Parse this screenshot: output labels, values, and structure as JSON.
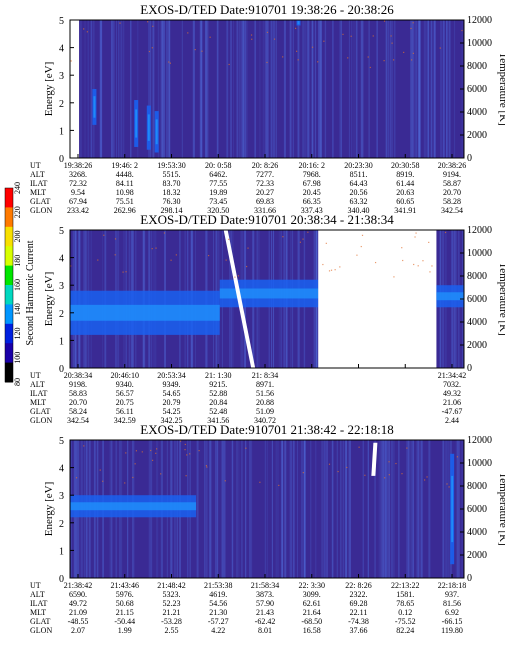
{
  "colors": {
    "background": "#3a2a94",
    "vertical_lines": "#4f6ad8",
    "stripe": "#1a60f0",
    "stripe_core": "#1f8af8",
    "white": "#ffffff",
    "noise_dot": "#e07030"
  },
  "colorbar": {
    "label": "Second Harmonic Current",
    "ticks": [
      "240",
      "220",
      "200",
      "180",
      "160",
      "140",
      "120",
      "100",
      "80"
    ],
    "stops": [
      "#ff0000",
      "#ff7a00",
      "#f8e000",
      "#d8ff00",
      "#00e600",
      "#00d8c0",
      "#0096ff",
      "#0020e0",
      "#1a00a8",
      "#000000"
    ]
  },
  "chart_data": [
    {
      "type": "heatmap",
      "title": "EXOS-D/TED   Date:910701   19:38:26 - 20:38:26",
      "ylabel": "Energy [eV]",
      "y2label": "Temperature [K]",
      "ylim": [
        0,
        5
      ],
      "yticks": [
        "0",
        "1",
        "2",
        "3",
        "4",
        "5"
      ],
      "y2lim": [
        0,
        12000
      ],
      "y2ticks": [
        "0",
        "2000",
        "4000",
        "6000",
        "8000",
        "10000",
        "12000"
      ],
      "xtick_labels": [
        "19:38:26",
        "19:46: 2",
        "19:53:30",
        "20: 0:58",
        "20: 8:26",
        "20:16: 2",
        "20:23:30",
        "20:30:58",
        "20:38:26"
      ],
      "ephemeris": [
        {
          "label": "UT",
          "values": [
            "19:38:26",
            "19:46: 2",
            "19:53:30",
            "20: 0:58",
            "20: 8:26",
            "20:16: 2",
            "20:23:30",
            "20:30:58",
            "20:38:26"
          ]
        },
        {
          "label": "ALT",
          "values": [
            "3268.",
            "4448.",
            "5515.",
            "6462.",
            "7277.",
            "7968.",
            "8511.",
            "8919.",
            "9194."
          ]
        },
        {
          "label": "ILAT",
          "values": [
            "72.32",
            "84.11",
            "83.70",
            "77.55",
            "72.33",
            "67.98",
            "64.43",
            "61.44",
            "58.87"
          ]
        },
        {
          "label": "MLT",
          "values": [
            "9.54",
            "10.98",
            "18.32",
            "19.89",
            "20.27",
            "20.45",
            "20.56",
            "20.63",
            "20.70"
          ]
        },
        {
          "label": "GLAT",
          "values": [
            "67.94",
            "75.51",
            "76.30",
            "73.45",
            "69.83",
            "66.35",
            "63.32",
            "60.65",
            "58.28"
          ]
        },
        {
          "label": "GLON",
          "values": [
            "233.42",
            "262.96",
            "298.14",
            "320.50",
            "331.66",
            "337.43",
            "340.40",
            "341.91",
            "342.54"
          ]
        }
      ],
      "features": [
        {
          "kind": "white_strip",
          "x_frac": [
            0.0,
            0.023
          ]
        },
        {
          "kind": "blue_column",
          "x_frac": 0.062,
          "energy": [
            1.2,
            2.5
          ]
        },
        {
          "kind": "blue_column",
          "x_frac": 0.168,
          "energy": [
            0.4,
            2.1
          ]
        },
        {
          "kind": "blue_column",
          "x_frac": 0.2,
          "energy": [
            0.3,
            1.9
          ]
        },
        {
          "kind": "blue_column",
          "x_frac": 0.22,
          "energy": [
            0.2,
            1.7
          ]
        },
        {
          "kind": "blue_column",
          "x_frac": 0.58,
          "energy": [
            4.8,
            5.0
          ]
        }
      ]
    },
    {
      "type": "heatmap",
      "title": "EXOS-D/TED   Date:910701   20:38:34 - 21:38:34",
      "ylabel": "Energy [eV]",
      "y2label": "Temperature [K]",
      "ylim": [
        0,
        5
      ],
      "yticks": [
        "0",
        "1",
        "2",
        "3",
        "4",
        "5"
      ],
      "y2lim": [
        0,
        12000
      ],
      "y2ticks": [
        "0",
        "2000",
        "4000",
        "6000",
        "8000",
        "10000",
        "12000"
      ],
      "xtick_labels": [
        "20:38:34",
        "20:46:10",
        "20:53:34",
        "21: 1:30",
        "21: 8:34",
        "21:34:42"
      ],
      "ephemeris": [
        {
          "label": "UT",
          "values": [
            "20:38:34",
            "20:46:10",
            "20:53:34",
            "21: 1:30",
            "21: 8:34",
            "",
            "",
            "",
            "21:34:42"
          ]
        },
        {
          "label": "ALT",
          "values": [
            "9198.",
            "9340.",
            "9349.",
            "9215.",
            "8971.",
            "",
            "",
            "",
            "7032."
          ]
        },
        {
          "label": "ILAT",
          "values": [
            "58.83",
            "56.57",
            "54.65",
            "52.88",
            "51.56",
            "",
            "",
            "",
            "49.32"
          ]
        },
        {
          "label": "MLT",
          "values": [
            "20.70",
            "20.75",
            "20.79",
            "20.84",
            "20.88",
            "",
            "",
            "",
            "21.06"
          ]
        },
        {
          "label": "GLAT",
          "values": [
            "58.24",
            "56.11",
            "54.25",
            "52.48",
            "51.09",
            "",
            "",
            "",
            "-47.67"
          ]
        },
        {
          "label": "GLON",
          "values": [
            "342.54",
            "342.59",
            "342.25",
            "341.56",
            "340.72",
            "",
            "",
            "",
            "2.44"
          ]
        }
      ],
      "features": [
        {
          "kind": "band",
          "x_frac": [
            0.38,
            0.63
          ],
          "energy": [
            2.2,
            3.2
          ]
        },
        {
          "kind": "band",
          "x_frac": [
            0.0,
            0.38
          ],
          "energy": [
            1.2,
            2.8
          ]
        },
        {
          "kind": "gap",
          "x_frac": [
            0.63,
            0.93
          ]
        },
        {
          "kind": "band",
          "x_frac": [
            0.93,
            1.0
          ],
          "energy": [
            2.2,
            3.0
          ]
        },
        {
          "kind": "white_streak",
          "x_frac": [
            0.39,
            0.47
          ],
          "energy": [
            5.0,
            0.0
          ]
        }
      ]
    },
    {
      "type": "heatmap",
      "title": "EXOS-D/TED   Date:910701   21:38:42 - 22:18:18",
      "ylabel": "Energy [eV]",
      "y2label": "Temperature [K]",
      "ylim": [
        0,
        5
      ],
      "yticks": [
        "0",
        "1",
        "2",
        "3",
        "4",
        "5"
      ],
      "y2lim": [
        0,
        12000
      ],
      "y2ticks": [
        "0",
        "2000",
        "4000",
        "6000",
        "8000",
        "10000",
        "12000"
      ],
      "xtick_labels": [
        "21:38:42",
        "21:43:46",
        "21:48:42",
        "21:53:38",
        "21:58:34",
        "22: 3:30",
        "22: 8:26",
        "22:13:22",
        "22:18:18"
      ],
      "ephemeris": [
        {
          "label": "UT",
          "values": [
            "21:38:42",
            "21:43:46",
            "21:48:42",
            "21:53:38",
            "21:58:34",
            "22: 3:30",
            "22: 8:26",
            "22:13:22",
            "22:18:18"
          ]
        },
        {
          "label": "ALT",
          "values": [
            "6590.",
            "5976.",
            "5323.",
            "4619.",
            "3873.",
            "3099.",
            "2322.",
            "1581.",
            "937."
          ]
        },
        {
          "label": "ILAT",
          "values": [
            "49.72",
            "50.68",
            "52.23",
            "54.56",
            "57.90",
            "62.61",
            "69.28",
            "78.65",
            "81.56"
          ]
        },
        {
          "label": "MLT",
          "values": [
            "21.09",
            "21.15",
            "21.21",
            "21.30",
            "21.43",
            "21.64",
            "22.11",
            "0.12",
            "6.92"
          ]
        },
        {
          "label": "GLAT",
          "values": [
            "-48.55",
            "-50.44",
            "-53.28",
            "-57.27",
            "-62.42",
            "-68.50",
            "-74.38",
            "-75.52",
            "-66.15"
          ]
        },
        {
          "label": "GLON",
          "values": [
            "2.07",
            "1.99",
            "2.55",
            "4.22",
            "8.01",
            "16.58",
            "37.66",
            "82.24",
            "119.80"
          ]
        }
      ],
      "features": [
        {
          "kind": "band",
          "x_frac": [
            0.0,
            0.32
          ],
          "energy": [
            2.2,
            3.0
          ]
        },
        {
          "kind": "white_streak",
          "x_frac": [
            0.77,
            0.775
          ],
          "energy": [
            4.9,
            3.7
          ]
        },
        {
          "kind": "blue_column",
          "x_frac": 0.97,
          "energy": [
            0.5,
            4.5
          ]
        }
      ]
    }
  ]
}
